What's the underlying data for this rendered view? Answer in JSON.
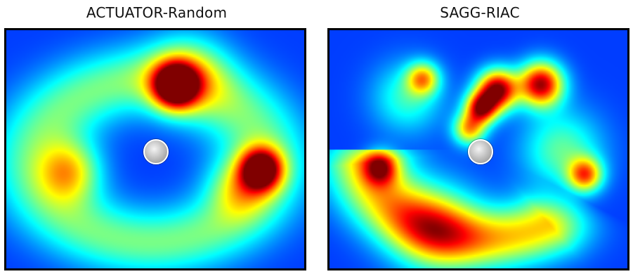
{
  "chart_data": [
    {
      "type": "heatmap",
      "title": "ACTUATOR-Random",
      "colormap": "jet",
      "hotspots": [
        {
          "label": "top-center",
          "intensity": 1.0
        },
        {
          "label": "right",
          "intensity": 0.95
        },
        {
          "label": "ring",
          "intensity": 0.38
        }
      ],
      "marker": "origin",
      "grid": false,
      "legend": "none"
    },
    {
      "type": "heatmap",
      "title": "SAGG-RIAC",
      "colormap": "jet",
      "hotspots": [
        {
          "label": "top-center-left",
          "intensity": 1.0
        },
        {
          "label": "top-center-right",
          "intensity": 0.95
        },
        {
          "label": "right",
          "intensity": 0.65
        },
        {
          "label": "bottom-arc",
          "intensity": 0.6
        },
        {
          "label": "left",
          "intensity": 0.55
        }
      ],
      "marker": "origin",
      "grid": false,
      "legend": "none"
    }
  ]
}
